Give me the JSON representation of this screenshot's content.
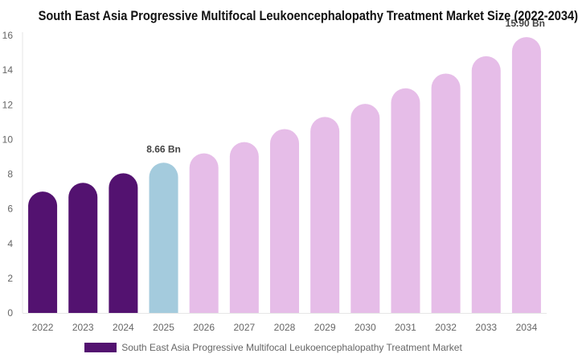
{
  "chart_data": {
    "type": "bar",
    "title": "South East Asia Progressive Multifocal Leukoencephalopathy Treatment Market Size (2022-2034)",
    "categories": [
      "2022",
      "2023",
      "2024",
      "2025",
      "2026",
      "2027",
      "2028",
      "2029",
      "2030",
      "2031",
      "2032",
      "2033",
      "2034"
    ],
    "series": [
      {
        "name": "South East Asia Progressive Multifocal Leukoencephalopathy Treatment Market",
        "values": [
          7.0,
          7.5,
          8.05,
          8.66,
          9.2,
          9.85,
          10.6,
          11.3,
          12.05,
          12.95,
          13.8,
          14.8,
          15.9
        ]
      }
    ],
    "ylim": [
      0,
      16
    ],
    "yticks": [
      "0",
      "2",
      "4",
      "6",
      "8",
      "10",
      "12",
      "14",
      "16"
    ],
    "data_labels": [
      {
        "index": 3,
        "text": "8.66 Bn"
      },
      {
        "index": 12,
        "text": "15.90 Bn"
      }
    ],
    "bar_colors": {
      "historical": "#531270",
      "current": "#a4cbdd",
      "forecast": "#e6bde8"
    },
    "historical_indices": [
      0,
      1,
      2
    ],
    "current_index": 3,
    "legend_color": "#531270",
    "legend_position": "bottom",
    "grid": false
  }
}
